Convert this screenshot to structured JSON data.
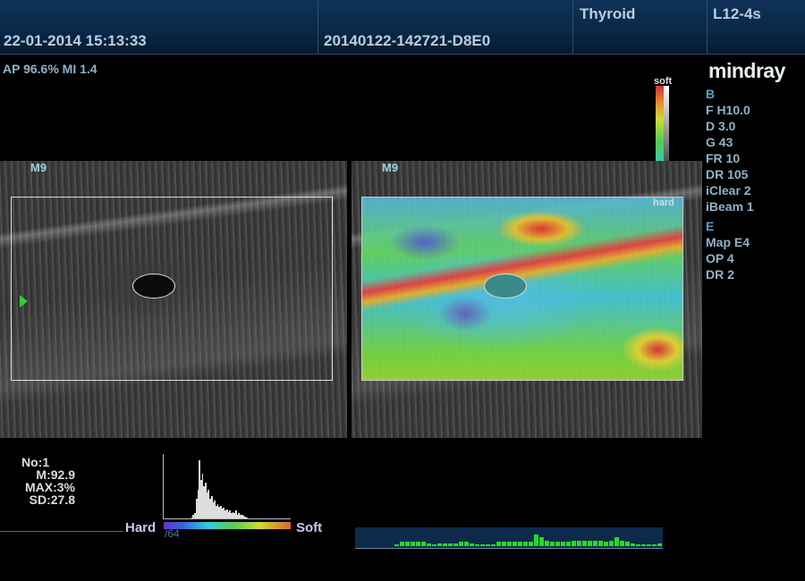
{
  "header": {
    "exam": "Thyroid",
    "probe": "L12-4s",
    "datetime": "22-01-2014 15:13:33",
    "patient_id": "20140122-142721-D8E0"
  },
  "acoustic": "AP 96.6%  MI 1.4",
  "brand": "mindray",
  "colorbar": {
    "top": "soft",
    "bottom": "hard"
  },
  "params": {
    "b_title": "B",
    "b": [
      "F H10.0",
      "D 3.0",
      "G 43",
      "FR 10",
      "DR 105",
      "iClear 2",
      "iBeam 1"
    ],
    "e_title": "E",
    "e": [
      "Map E4",
      "OP 4",
      "DR 2"
    ]
  },
  "images": {
    "left_label": "M9",
    "right_label": "M9"
  },
  "stats": {
    "no": "No:1",
    "m": "M:92.9",
    "max": "MAX:3%",
    "sd": "SD:27.8"
  },
  "histogram": {
    "hard": "Hard",
    "soft": "Soft",
    "scale": "/64",
    "values": [
      0,
      2,
      5,
      8,
      30,
      45,
      90,
      60,
      70,
      50,
      55,
      40,
      45,
      30,
      35,
      25,
      28,
      20,
      22,
      18,
      20,
      15,
      16,
      12,
      14,
      10,
      12,
      8,
      10,
      9,
      12,
      6,
      8,
      5,
      6,
      4,
      3,
      2
    ]
  },
  "strain_graph": {
    "values": [
      1,
      3,
      3,
      3,
      3,
      3,
      2,
      1,
      2,
      2,
      2,
      2,
      3,
      3,
      2,
      1,
      1,
      1,
      1,
      3,
      3,
      3,
      3,
      3,
      3,
      3,
      8,
      6,
      4,
      3,
      3,
      3,
      3,
      4,
      4,
      4,
      4,
      4,
      4,
      3,
      4,
      6,
      4,
      3,
      2,
      1,
      1,
      1,
      1,
      2
    ]
  },
  "colors": {
    "header": "#0a2746",
    "text": "#8fb3c8"
  }
}
